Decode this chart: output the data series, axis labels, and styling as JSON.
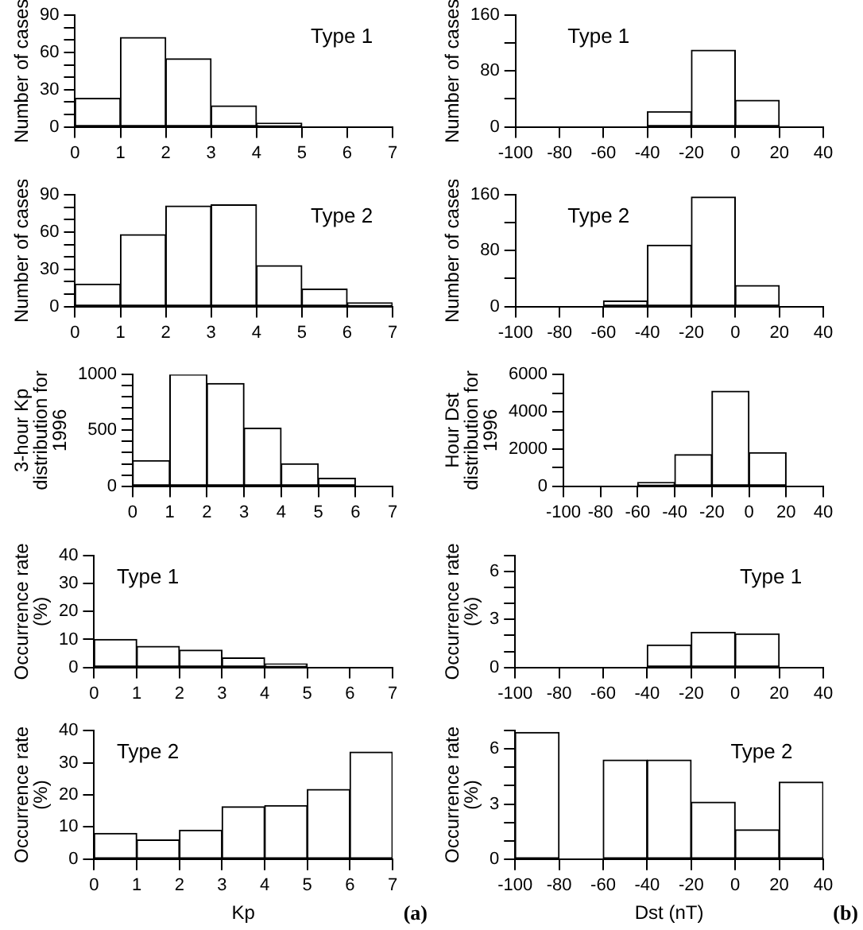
{
  "chart_data": [
    {
      "type": "histogram",
      "bins": [
        0,
        1,
        2,
        3,
        4,
        5,
        6,
        7
      ],
      "values": [
        23,
        72,
        55,
        17,
        3,
        0,
        0
      ],
      "color": "#ffffff",
      "xlim": [
        0,
        7
      ],
      "xticks": [
        0,
        1,
        2,
        3,
        4,
        5,
        6,
        7
      ],
      "ylim": [
        0,
        90
      ],
      "yticks": [
        0,
        {
          "value": 10,
          "label": null
        },
        {
          "value": 20,
          "label": null
        },
        30,
        {
          "value": 40,
          "label": null
        },
        {
          "value": 50,
          "label": null
        },
        60,
        {
          "value": 70,
          "label": null
        },
        {
          "value": 80,
          "label": null
        },
        90
      ],
      "ylabel": "Number of cases",
      "annotations": [
        "Type 1"
      ],
      "grid": false,
      "legend": false
    },
    {
      "type": "histogram",
      "bins": [
        -100,
        -80,
        -60,
        -40,
        -20,
        0,
        20,
        40
      ],
      "values": [
        0,
        0,
        0,
        22,
        110,
        38,
        0
      ],
      "color": "#ffffff",
      "xlim": [
        -100,
        40
      ],
      "xticks": [
        -100,
        -80,
        -60,
        -40,
        -20,
        0,
        20,
        40
      ],
      "ylim": [
        0,
        160
      ],
      "yticks": [
        0,
        {
          "value": 40,
          "label": null
        },
        80,
        {
          "value": 120,
          "label": null
        },
        160
      ],
      "ylabel": "Number of cases",
      "annotations": [
        "Type 1"
      ],
      "grid": false,
      "legend": false
    },
    {
      "type": "histogram",
      "bins": [
        0,
        1,
        2,
        3,
        4,
        5,
        6,
        7
      ],
      "values": [
        18,
        58,
        81,
        82,
        33,
        14,
        3
      ],
      "color": "#ffffff",
      "xlim": [
        0,
        7
      ],
      "xticks": [
        0,
        1,
        2,
        3,
        4,
        5,
        6,
        7
      ],
      "ylim": [
        0,
        90
      ],
      "yticks": [
        0,
        {
          "value": 10,
          "label": null
        },
        {
          "value": 20,
          "label": null
        },
        30,
        {
          "value": 40,
          "label": null
        },
        {
          "value": 50,
          "label": null
        },
        60,
        {
          "value": 70,
          "label": null
        },
        {
          "value": 80,
          "label": null
        },
        90
      ],
      "ylabel": "Number of cases",
      "annotations": [
        "Type 2"
      ],
      "grid": false,
      "legend": false
    },
    {
      "type": "histogram",
      "bins": [
        -100,
        -80,
        -60,
        -40,
        -20,
        0,
        20,
        40
      ],
      "values": [
        0,
        0,
        8,
        88,
        157,
        30,
        0
      ],
      "color": "#ffffff",
      "xlim": [
        -100,
        40
      ],
      "xticks": [
        -100,
        -80,
        -60,
        -40,
        -20,
        0,
        20,
        40
      ],
      "ylim": [
        0,
        160
      ],
      "yticks": [
        0,
        {
          "value": 40,
          "label": null
        },
        80,
        {
          "value": 120,
          "label": null
        },
        160
      ],
      "ylabel": "Number of cases",
      "annotations": [
        "Type 2"
      ],
      "grid": false,
      "legend": false
    },
    {
      "type": "histogram",
      "bins": [
        0,
        1,
        2,
        3,
        4,
        5,
        6,
        7
      ],
      "values": [
        230,
        1000,
        920,
        520,
        200,
        70,
        0
      ],
      "color": "#ffffff",
      "xlim": [
        0,
        7
      ],
      "xticks": [
        0,
        1,
        2,
        3,
        4,
        5,
        6,
        7
      ],
      "ylim": [
        0,
        1000
      ],
      "yticks": [
        0,
        {
          "value": 100,
          "label": null
        },
        {
          "value": 200,
          "label": null
        },
        {
          "value": 300,
          "label": null
        },
        {
          "value": 400,
          "label": null
        },
        500,
        {
          "value": 600,
          "label": null
        },
        {
          "value": 700,
          "label": null
        },
        {
          "value": 800,
          "label": null
        },
        {
          "value": 900,
          "label": null
        },
        1000
      ],
      "ylabel": "3-hour Kp distribution for 1996",
      "grid": false,
      "legend": false
    },
    {
      "type": "histogram",
      "bins": [
        -100,
        -80,
        -60,
        -40,
        -20,
        0,
        20,
        40
      ],
      "values": [
        0,
        0,
        200,
        1700,
        5100,
        1800,
        0
      ],
      "color": "#ffffff",
      "xlim": [
        -100,
        40
      ],
      "xticks": [
        -100,
        -80,
        -60,
        -40,
        -20,
        0,
        20,
        40
      ],
      "ylim": [
        0,
        6000
      ],
      "yticks": [
        0,
        {
          "value": 1000,
          "label": null
        },
        2000,
        {
          "value": 3000,
          "label": null
        },
        4000,
        {
          "value": 5000,
          "label": null
        },
        6000
      ],
      "ylabel": "Hour Dst distribution for 1996",
      "grid": false,
      "legend": false
    },
    {
      "type": "histogram",
      "bins": [
        0,
        1,
        2,
        3,
        4,
        5,
        6,
        7
      ],
      "values": [
        10,
        7.5,
        6.2,
        3.4,
        1.3,
        0,
        0
      ],
      "color": "#ffffff",
      "xlim": [
        0,
        7
      ],
      "xticks": [
        0,
        1,
        2,
        3,
        4,
        5,
        6,
        7
      ],
      "ylim": [
        0,
        40
      ],
      "yticks": [
        0,
        10,
        20,
        30,
        40
      ],
      "ylabel": "Occurrence rate (%)",
      "annotations": [
        "Type 1"
      ],
      "grid": false,
      "legend": false
    },
    {
      "type": "histogram",
      "bins": [
        -100,
        -80,
        -60,
        -40,
        -20,
        0,
        20,
        40
      ],
      "values": [
        0,
        0,
        0,
        1.4,
        2.2,
        2.1,
        0
      ],
      "color": "#ffffff",
      "xlim": [
        -100,
        40
      ],
      "xticks": [
        -100,
        -80,
        -60,
        -40,
        -20,
        0,
        20,
        40
      ],
      "ylim": [
        0,
        7
      ],
      "yticks": [
        0,
        {
          "value": 1,
          "label": null
        },
        {
          "value": 2,
          "label": null
        },
        3,
        {
          "value": 4,
          "label": null
        },
        {
          "value": 5,
          "label": null
        },
        6,
        {
          "value": 7,
          "label": null
        }
      ],
      "ylabel": "Occurrence rate (%)",
      "annotations": [
        "Type 1"
      ],
      "grid": false,
      "legend": false
    },
    {
      "type": "histogram",
      "bins": [
        0,
        1,
        2,
        3,
        4,
        5,
        6,
        7
      ],
      "values": [
        8,
        6,
        9,
        16.3,
        16.7,
        21.7,
        33.3
      ],
      "color": "#ffffff",
      "xlim": [
        0,
        7
      ],
      "xticks": [
        0,
        1,
        2,
        3,
        4,
        5,
        6,
        7
      ],
      "ylim": [
        0,
        40
      ],
      "yticks": [
        0,
        10,
        20,
        30,
        40
      ],
      "xlabel": "Kp",
      "ylabel": "Occurrence rate (%)",
      "annotations": [
        "Type 2",
        "(a)"
      ],
      "grid": false,
      "legend": false
    },
    {
      "type": "histogram",
      "bins": [
        -100,
        -80,
        -60,
        -40,
        -20,
        0,
        20,
        40
      ],
      "values": [
        6.9,
        0,
        5.4,
        5.4,
        3.1,
        1.6,
        4.2
      ],
      "color": "#ffffff",
      "xlim": [
        -100,
        40
      ],
      "xticks": [
        -100,
        -80,
        -60,
        -40,
        -20,
        0,
        20,
        40
      ],
      "ylim": [
        0,
        7
      ],
      "yticks": [
        0,
        {
          "value": 1,
          "label": null
        },
        {
          "value": 2,
          "label": null
        },
        3,
        {
          "value": 4,
          "label": null
        },
        {
          "value": 5,
          "label": null
        },
        6,
        {
          "value": 7,
          "label": null
        }
      ],
      "xlabel": "Dst (nT)",
      "ylabel": "Occurrence rate (%)",
      "annotations": [
        "Type 2",
        "(b)"
      ],
      "grid": false,
      "legend": false
    }
  ]
}
